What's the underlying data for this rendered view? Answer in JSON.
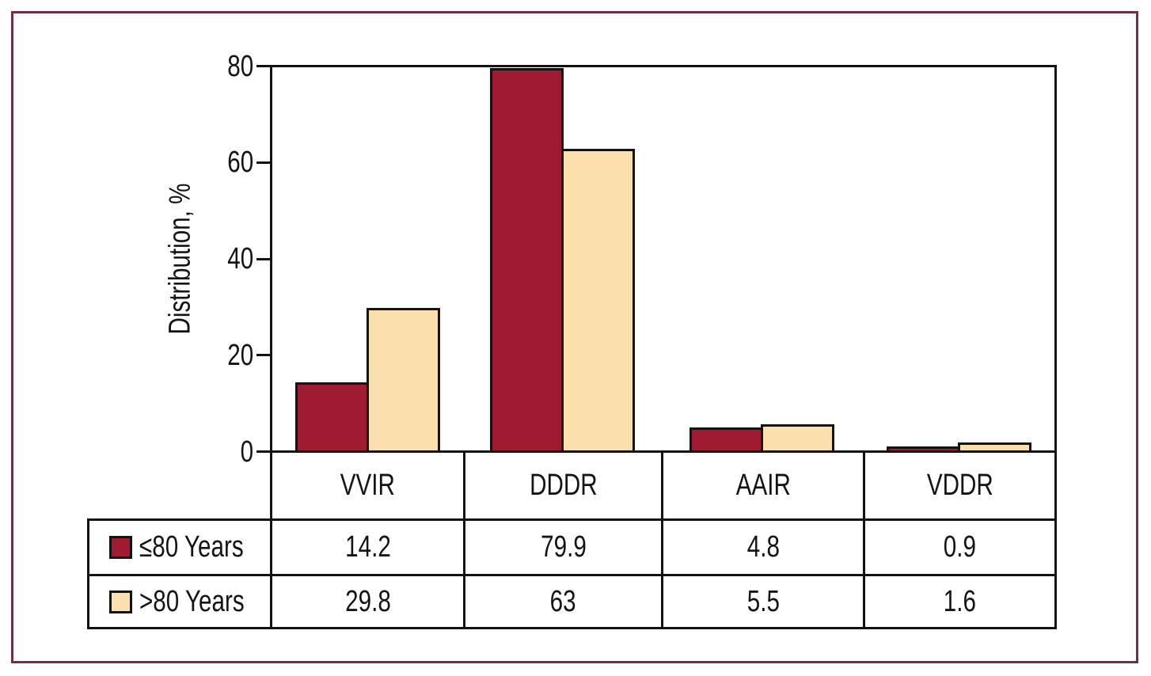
{
  "figure": {
    "frame_border_color": "#722F41",
    "line_color": "#131313",
    "background_color": "#ffffff"
  },
  "chart_data": {
    "type": "bar",
    "title": "",
    "xlabel": "",
    "ylabel": "Distribution, %",
    "ylim": [
      0,
      80
    ],
    "yticks": [
      0,
      20,
      40,
      60,
      80
    ],
    "grid": false,
    "legend_position": "table-below",
    "bar_outline_color": "#131313",
    "categories": [
      "VVIR",
      "DDDR",
      "AAIR",
      "VDDR"
    ],
    "series": [
      {
        "name": "≤80 Years",
        "color": "#9E1B32",
        "values": [
          14.2,
          79.9,
          4.8,
          0.9
        ]
      },
      {
        "name": ">80 Years",
        "color": "#FBDFAD",
        "values": [
          29.8,
          63,
          5.5,
          1.6
        ]
      }
    ]
  },
  "table": {
    "column_headers": [
      "VVIR",
      "DDDR",
      "AAIR",
      "VDDR"
    ],
    "rows": [
      {
        "label": "≤80 Years",
        "swatch_color": "#9E1B32",
        "values": [
          "14.2",
          "79.9",
          "4.8",
          "0.9"
        ]
      },
      {
        "label": ">80 Years",
        "swatch_color": "#FBDFAD",
        "values": [
          "29.8",
          "63",
          "5.5",
          "1.6"
        ]
      }
    ]
  }
}
